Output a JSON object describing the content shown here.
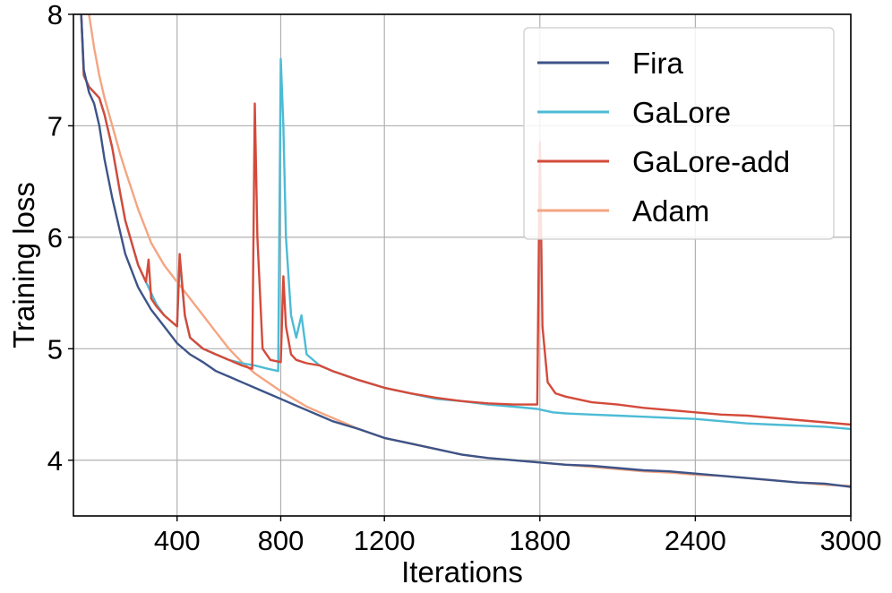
{
  "chart_data": {
    "type": "line",
    "xlabel": "Iterations",
    "ylabel": "Training loss",
    "xlim": [
      0,
      3000
    ],
    "ylim": [
      3.5,
      8
    ],
    "xticks": [
      400,
      800,
      1200,
      1800,
      2400,
      3000
    ],
    "xtick_labels": [
      "400",
      "800",
      "1200",
      "1800",
      "2400",
      "3000"
    ],
    "yticks": [
      4,
      5,
      6,
      7,
      8
    ],
    "ytick_labels": [
      "4",
      "5",
      "6",
      "7",
      "8"
    ],
    "grid": true,
    "legend_position": "top-right",
    "series": [
      {
        "name": "Fira",
        "color": "#3d5488",
        "x": [
          30,
          40,
          60,
          80,
          100,
          120,
          150,
          180,
          200,
          250,
          300,
          350,
          400,
          450,
          500,
          550,
          600,
          650,
          700,
          750,
          800,
          850,
          900,
          950,
          1000,
          1100,
          1200,
          1300,
          1400,
          1500,
          1600,
          1700,
          1800,
          1900,
          2000,
          2100,
          2200,
          2300,
          2400,
          2500,
          2600,
          2700,
          2800,
          2900,
          3000
        ],
        "y": [
          8.0,
          7.5,
          7.3,
          7.2,
          7.0,
          6.7,
          6.35,
          6.05,
          5.85,
          5.55,
          5.35,
          5.2,
          5.05,
          4.95,
          4.88,
          4.8,
          4.75,
          4.7,
          4.65,
          4.6,
          4.55,
          4.5,
          4.45,
          4.4,
          4.35,
          4.28,
          4.2,
          4.15,
          4.1,
          4.05,
          4.02,
          4.0,
          3.98,
          3.96,
          3.95,
          3.93,
          3.91,
          3.9,
          3.88,
          3.86,
          3.84,
          3.82,
          3.8,
          3.79,
          3.76
        ]
      },
      {
        "name": "GaLore",
        "color": "#4dbbd5",
        "x": [
          30,
          40,
          60,
          80,
          100,
          120,
          150,
          180,
          200,
          250,
          280,
          300,
          320,
          350,
          400,
          410,
          430,
          450,
          500,
          550,
          600,
          650,
          700,
          750,
          790,
          800,
          810,
          820,
          840,
          860,
          880,
          900,
          950,
          1000,
          1100,
          1200,
          1300,
          1400,
          1500,
          1600,
          1700,
          1790,
          1810,
          1850,
          1900,
          2000,
          2100,
          2200,
          2300,
          2400,
          2500,
          2600,
          2700,
          2800,
          2900,
          3000
        ],
        "y": [
          8.0,
          7.45,
          7.35,
          7.3,
          7.25,
          7.1,
          6.8,
          6.4,
          6.15,
          5.75,
          5.6,
          5.5,
          5.4,
          5.3,
          5.2,
          5.8,
          5.3,
          5.1,
          5.0,
          4.95,
          4.9,
          4.87,
          4.85,
          4.82,
          4.8,
          7.6,
          7.0,
          6.0,
          5.3,
          5.1,
          5.3,
          4.95,
          4.85,
          4.8,
          4.72,
          4.65,
          4.6,
          4.55,
          4.53,
          4.5,
          4.48,
          4.46,
          4.45,
          4.43,
          4.42,
          4.41,
          4.4,
          4.39,
          4.38,
          4.37,
          4.35,
          4.33,
          4.32,
          4.31,
          4.3,
          4.28
        ]
      },
      {
        "name": "GaLore-add",
        "color": "#d44a3a",
        "x": [
          30,
          40,
          60,
          80,
          100,
          120,
          150,
          180,
          200,
          250,
          280,
          290,
          300,
          320,
          350,
          400,
          410,
          430,
          450,
          500,
          550,
          600,
          650,
          690,
          700,
          710,
          730,
          760,
          800,
          810,
          820,
          840,
          860,
          900,
          950,
          1000,
          1100,
          1200,
          1300,
          1400,
          1500,
          1600,
          1700,
          1790,
          1800,
          1810,
          1830,
          1860,
          1900,
          2000,
          2100,
          2200,
          2300,
          2400,
          2500,
          2600,
          2700,
          2800,
          2900,
          3000
        ],
        "y": [
          8.0,
          7.45,
          7.35,
          7.3,
          7.25,
          7.1,
          6.8,
          6.4,
          6.15,
          5.75,
          5.6,
          5.8,
          5.45,
          5.38,
          5.3,
          5.2,
          5.85,
          5.3,
          5.1,
          5.0,
          4.95,
          4.9,
          4.85,
          4.82,
          7.2,
          6.0,
          5.0,
          4.9,
          4.88,
          5.65,
          5.2,
          4.95,
          4.9,
          4.87,
          4.85,
          4.8,
          4.72,
          4.65,
          4.6,
          4.56,
          4.53,
          4.51,
          4.5,
          4.5,
          6.85,
          5.2,
          4.7,
          4.6,
          4.57,
          4.52,
          4.5,
          4.47,
          4.45,
          4.43,
          4.41,
          4.4,
          4.38,
          4.36,
          4.34,
          4.32
        ]
      },
      {
        "name": "Adam",
        "color": "#f4a582",
        "x": [
          60,
          80,
          100,
          120,
          150,
          180,
          200,
          250,
          300,
          350,
          400,
          450,
          500,
          550,
          600,
          650,
          700,
          750,
          800,
          850,
          900,
          950,
          1000,
          1100,
          1200,
          1300,
          1400,
          1500,
          1600,
          1700,
          1800,
          1900,
          2000,
          2100,
          2200,
          2300,
          2400,
          2500,
          2600,
          2700,
          2800,
          2900,
          3000
        ],
        "y": [
          8.0,
          7.7,
          7.45,
          7.25,
          7.0,
          6.75,
          6.6,
          6.25,
          5.95,
          5.75,
          5.6,
          5.45,
          5.3,
          5.15,
          5.0,
          4.88,
          4.78,
          4.7,
          4.62,
          4.55,
          4.48,
          4.43,
          4.38,
          4.28,
          4.2,
          4.15,
          4.1,
          4.05,
          4.02,
          4.0,
          3.98,
          3.96,
          3.94,
          3.92,
          3.9,
          3.89,
          3.87,
          3.86,
          3.84,
          3.82,
          3.8,
          3.78,
          3.77
        ]
      }
    ]
  }
}
